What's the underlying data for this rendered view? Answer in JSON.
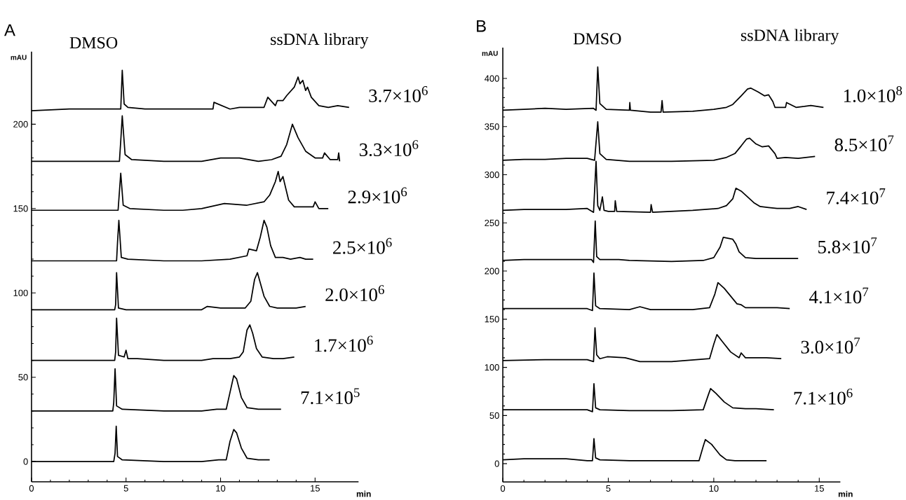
{
  "chart_data": [
    {
      "type": "line",
      "title": "A",
      "xlabel": "min",
      "ylabel": "mAU",
      "annotations": [
        "DMSO",
        "ssDNA library"
      ],
      "xlim": [
        0,
        17.3
      ],
      "xticks": [
        0,
        5,
        10,
        15
      ],
      "ylim": [
        -12,
        243
      ],
      "yticks": [
        0,
        50,
        100,
        150,
        200
      ],
      "marker": "none",
      "line_style": "solid",
      "series": [
        {
          "name": "3.7×10$^{6}$",
          "color": "#000000",
          "x": [
            0,
            2,
            4.6,
            4.72,
            4.8,
            4.9,
            5.1,
            6,
            8,
            9.6,
            9.65,
            10.5,
            11,
            12,
            12.3,
            12.5,
            12.9,
            13.0,
            13.3,
            13.5,
            13.9,
            14.1,
            14.2,
            14.35,
            14.5,
            14.6,
            14.8,
            15.2,
            15.7,
            16.2,
            16.8
          ],
          "values": [
            208,
            209,
            209,
            209,
            232,
            212,
            210,
            209,
            209,
            209,
            213,
            209,
            210,
            210,
            210,
            216,
            211,
            214,
            214,
            217,
            222,
            228,
            224,
            226,
            220,
            222,
            216,
            211,
            210,
            211,
            210
          ]
        },
        {
          "name": "3.3×10$^{6}$",
          "color": "#000000",
          "x": [
            0,
            3,
            4.65,
            4.72,
            4.8,
            4.95,
            5.3,
            7,
            9,
            10,
            11,
            12,
            12.7,
            13.2,
            13.5,
            13.8,
            14.1,
            14.5,
            15,
            15.4,
            15.5,
            15.8,
            16.2,
            16.25,
            16.3
          ],
          "values": [
            178,
            178,
            178,
            190,
            205,
            182,
            179,
            178,
            178,
            180,
            180,
            178,
            179,
            181,
            188,
            200,
            192,
            184,
            180,
            180,
            183,
            179,
            179,
            183,
            178
          ]
        },
        {
          "name": "2.9×10$^{6}$",
          "color": "#000000",
          "x": [
            0,
            3,
            4.58,
            4.65,
            4.72,
            4.85,
            5.2,
            7,
            8,
            9,
            10.2,
            11.4,
            12.3,
            12.6,
            12.9,
            13.05,
            13.15,
            13.3,
            13.45,
            13.6,
            13.9,
            14.3,
            14.9,
            15.0,
            15.2,
            15.7
          ],
          "values": [
            149,
            149,
            149,
            160,
            171,
            152,
            150,
            149,
            149,
            150,
            153,
            152,
            154,
            158,
            166,
            172,
            166,
            169,
            162,
            155,
            151,
            151,
            151,
            154,
            150,
            150
          ]
        },
        {
          "name": "2.5×10$^{6}$",
          "color": "#000000",
          "x": [
            0,
            3,
            4.5,
            4.55,
            4.62,
            4.75,
            5.1,
            7,
            9,
            10.5,
            11.4,
            11.5,
            11.9,
            12.1,
            12.3,
            12.45,
            12.65,
            12.9,
            13.3,
            13.7,
            14.2,
            14.5,
            14.9
          ],
          "values": [
            119,
            119,
            119,
            130,
            143,
            121,
            120,
            119,
            119,
            120,
            122,
            126,
            125,
            133,
            143,
            139,
            128,
            121,
            121,
            120,
            121,
            120,
            120
          ]
        },
        {
          "name": "2.0×10$^{6}$",
          "color": "#000000",
          "x": [
            0,
            3,
            4.4,
            4.45,
            4.5,
            4.6,
            5,
            7,
            9,
            9.3,
            10,
            11.3,
            11.6,
            11.8,
            11.95,
            12.1,
            12.3,
            12.6,
            13,
            13.5,
            14,
            14.5
          ],
          "values": [
            90,
            90,
            90,
            93,
            112,
            91,
            90,
            90,
            90,
            92,
            91,
            91,
            95,
            108,
            112,
            106,
            98,
            92,
            91,
            91,
            91,
            92
          ]
        },
        {
          "name": "1.7×10$^{6}$",
          "color": "#000000",
          "x": [
            0,
            3,
            4.4,
            4.45,
            4.5,
            4.6,
            4.9,
            5.0,
            5.1,
            5.6,
            7,
            9,
            9.6,
            10.5,
            11,
            11.2,
            11.4,
            11.55,
            11.7,
            11.9,
            12.2,
            12.8,
            13.3,
            13.9
          ],
          "values": [
            60,
            60,
            60,
            65,
            85,
            63,
            62,
            66,
            61,
            61,
            60,
            60,
            61,
            61,
            62,
            65,
            78,
            81,
            76,
            67,
            62,
            61,
            61,
            62
          ]
        },
        {
          "name": "7.1×10$^{5}$",
          "color": "#000000",
          "x": [
            0,
            3,
            4.3,
            4.35,
            4.42,
            4.5,
            4.8,
            7,
            9,
            9.8,
            10.3,
            10.5,
            10.7,
            10.85,
            11.1,
            11.4,
            12,
            13.2
          ],
          "values": [
            30,
            30,
            30,
            35,
            55,
            33,
            31,
            30,
            30,
            31,
            31,
            41,
            51,
            49,
            38,
            32,
            31,
            31
          ]
        },
        {
          "color": "#000000",
          "x": [
            0,
            3,
            4.35,
            4.42,
            4.48,
            4.55,
            4.8,
            7,
            9,
            9.9,
            10.3,
            10.5,
            10.7,
            10.85,
            11.1,
            11.4,
            12,
            12.6
          ],
          "values": [
            0,
            0,
            0,
            5,
            21,
            3,
            1,
            0,
            0,
            1,
            1,
            12,
            19,
            17,
            8,
            2,
            1,
            1
          ]
        }
      ]
    },
    {
      "type": "line",
      "title": "B",
      "xlabel": "min",
      "ylabel": "mAU",
      "annotations": [
        "DMSO",
        "ssDNA library"
      ],
      "xlim": [
        0,
        16
      ],
      "xticks": [
        0,
        5,
        10,
        15
      ],
      "ylim": [
        -19,
        432
      ],
      "yticks": [
        0,
        50,
        100,
        150,
        200,
        250,
        300,
        350,
        400
      ],
      "marker": "none",
      "line_style": "solid",
      "series": [
        {
          "name": "1.0×10$^{8}$",
          "color": "#000000",
          "x": [
            0,
            1,
            2,
            3,
            4.3,
            4.42,
            4.5,
            4.6,
            4.9,
            6.0,
            6.02,
            6.05,
            7,
            7.5,
            7.55,
            7.6,
            9,
            10,
            10.6,
            10.9,
            11.3,
            11.6,
            11.75,
            12.1,
            12.4,
            12.6,
            12.8,
            12.9,
            13.4,
            13.45,
            13.9,
            14.3,
            14.6,
            15.2
          ],
          "values": [
            367,
            368,
            369,
            368,
            369,
            367,
            412,
            374,
            368,
            367,
            375,
            367,
            365,
            365,
            377,
            365,
            366,
            368,
            370,
            373,
            382,
            389,
            390,
            386,
            382,
            383,
            376,
            370,
            370,
            375,
            370,
            371,
            372,
            370
          ]
        },
        {
          "name": "8.5×10$^{7}$",
          "color": "#000000",
          "x": [
            0,
            1,
            2,
            3,
            4,
            4.35,
            4.5,
            4.6,
            4.9,
            6,
            8,
            10,
            10.6,
            11,
            11.3,
            11.55,
            11.7,
            12,
            12.3,
            12.6,
            12.9,
            13,
            13.4,
            14,
            14.8
          ],
          "values": [
            315,
            316,
            316,
            317,
            317,
            315,
            355,
            322,
            316,
            314,
            314,
            315,
            318,
            322,
            330,
            337,
            338,
            332,
            329,
            330,
            322,
            317,
            318,
            317,
            319
          ]
        },
        {
          "name": "7.4×10$^{7}$",
          "color": "#000000",
          "x": [
            0,
            1,
            2,
            3,
            4,
            4.3,
            4.42,
            4.5,
            4.6,
            4.72,
            4.8,
            5.0,
            5.3,
            5.33,
            5.4,
            7,
            7.03,
            7.1,
            9,
            10.2,
            10.6,
            10.9,
            11.05,
            11.3,
            11.6,
            11.9,
            12.2,
            12.6,
            13,
            13.6,
            14.0,
            14.4
          ],
          "values": [
            263,
            264,
            264,
            264,
            265,
            261,
            314,
            268,
            263,
            277,
            263,
            262,
            262,
            273,
            262,
            261,
            269,
            261,
            263,
            265,
            268,
            275,
            286,
            283,
            277,
            271,
            267,
            266,
            265,
            265,
            267,
            264
          ]
        },
        {
          "name": "5.8×10$^{7}$",
          "color": "#000000",
          "x": [
            0,
            1,
            2,
            3,
            4.2,
            4.3,
            4.38,
            4.45,
            4.6,
            5.5,
            6,
            8,
            9.5,
            10,
            10.3,
            10.45,
            10.7,
            10.9,
            11.05,
            11.2,
            11.5,
            12,
            12.5,
            13,
            13.5,
            14.0
          ],
          "values": [
            211,
            212,
            212,
            212,
            212,
            209,
            252,
            215,
            212,
            212,
            211,
            210,
            211,
            214,
            225,
            235,
            234,
            233,
            228,
            220,
            214,
            213,
            213,
            213,
            213,
            213
          ]
        },
        {
          "name": "4.1×10$^{7}$",
          "color": "#000000",
          "x": [
            0,
            2,
            4,
            4.25,
            4.32,
            4.4,
            4.6,
            6,
            6.5,
            7,
            9,
            9.8,
            10.05,
            10.2,
            10.5,
            10.8,
            11.1,
            11.3,
            11.5,
            12,
            13,
            13.6
          ],
          "values": [
            161,
            161,
            161,
            159,
            198,
            164,
            161,
            160,
            163,
            160,
            160,
            162,
            176,
            188,
            182,
            174,
            166,
            165,
            162,
            162,
            162,
            161
          ]
        },
        {
          "name": "3.0×10$^{7}$",
          "color": "#000000",
          "x": [
            0,
            2,
            4,
            4.3,
            4.37,
            4.45,
            4.6,
            4.95,
            5.8,
            6.5,
            8,
            9.8,
            10.0,
            10.15,
            10.4,
            10.8,
            11.2,
            11.3,
            11.5,
            12,
            12.5,
            13.2
          ],
          "values": [
            107,
            108,
            108,
            106,
            141,
            113,
            109,
            111,
            110,
            106,
            106,
            109,
            124,
            134,
            127,
            116,
            110,
            115,
            110,
            110,
            110,
            109
          ]
        },
        {
          "name": "7.1×10$^{6}$",
          "color": "#000000",
          "x": [
            0,
            2,
            4,
            4.25,
            4.32,
            4.4,
            4.6,
            6,
            8,
            9.5,
            9.75,
            9.85,
            10.1,
            10.5,
            10.9,
            11.5,
            12,
            12.85
          ],
          "values": [
            56,
            56,
            56,
            54,
            83,
            58,
            56,
            55,
            55,
            56,
            72,
            78,
            73,
            64,
            58,
            57,
            57,
            56
          ]
        },
        {
          "color": "#000000",
          "x": [
            0,
            1,
            2,
            3,
            4,
            4.25,
            4.32,
            4.4,
            4.6,
            6,
            8,
            9.3,
            9.5,
            9.6,
            9.9,
            10.3,
            10.6,
            11,
            12,
            12.5
          ],
          "values": [
            4,
            5,
            5,
            5,
            3,
            3,
            26,
            6,
            4,
            3,
            3,
            3,
            18,
            25,
            20,
            9,
            4,
            3,
            3,
            3
          ]
        }
      ]
    }
  ]
}
